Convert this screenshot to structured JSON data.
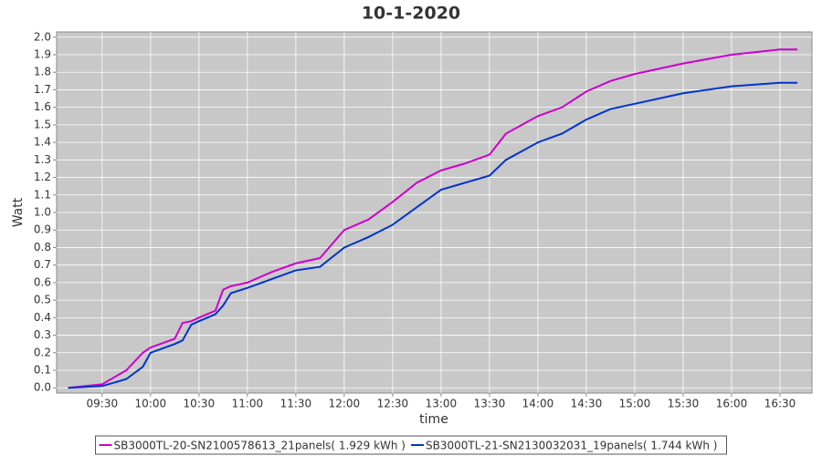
{
  "chart_data": {
    "type": "line",
    "title": "10-1-2020",
    "x_label": "time",
    "y_label": "Watt",
    "x": [
      9.15,
      9.5,
      9.75,
      9.92,
      10.0,
      10.25,
      10.33,
      10.42,
      10.5,
      10.67,
      10.75,
      10.83,
      11.0,
      11.25,
      11.5,
      11.75,
      12.0,
      12.25,
      12.5,
      12.75,
      13.0,
      13.25,
      13.5,
      13.67,
      14.0,
      14.25,
      14.5,
      14.75,
      15.0,
      15.5,
      16.0,
      16.5,
      16.68
    ],
    "series": [
      {
        "name": "SB3000TL-20-SN2100578613_21panels( 1.929 kWh )",
        "color": "#cc00cc",
        "values": [
          0,
          0.02,
          0.1,
          0.2,
          0.23,
          0.28,
          0.37,
          0.38,
          0.4,
          0.44,
          0.56,
          0.58,
          0.6,
          0.66,
          0.71,
          0.74,
          0.9,
          0.96,
          1.06,
          1.17,
          1.24,
          1.28,
          1.33,
          1.45,
          1.55,
          1.6,
          1.69,
          1.75,
          1.79,
          1.85,
          1.9,
          1.93,
          1.93
        ]
      },
      {
        "name": "SB3000TL-21-SN2130032031_19panels( 1.744 kWh )",
        "color": "#0033cc",
        "values": [
          0,
          0.01,
          0.05,
          0.12,
          0.2,
          0.25,
          0.27,
          0.36,
          0.38,
          0.42,
          0.47,
          0.54,
          0.57,
          0.62,
          0.67,
          0.69,
          0.8,
          0.86,
          0.93,
          1.03,
          1.13,
          1.17,
          1.21,
          1.3,
          1.4,
          1.45,
          1.53,
          1.59,
          1.62,
          1.68,
          1.72,
          1.74,
          1.74
        ]
      }
    ],
    "xlim": [
      9.03,
      16.83
    ],
    "xticks": [
      {
        "value": 9.5,
        "label": "09:30"
      },
      {
        "value": 10,
        "label": "10:00"
      },
      {
        "value": 10.5,
        "label": "10:30"
      },
      {
        "value": 11,
        "label": "11:00"
      },
      {
        "value": 11.5,
        "label": "11:30"
      },
      {
        "value": 12,
        "label": "12:00"
      },
      {
        "value": 12.5,
        "label": "12:30"
      },
      {
        "value": 13,
        "label": "13:00"
      },
      {
        "value": 13.5,
        "label": "13:30"
      },
      {
        "value": 14,
        "label": "14:00"
      },
      {
        "value": 14.5,
        "label": "14:30"
      },
      {
        "value": 15,
        "label": "15:00"
      },
      {
        "value": 15.5,
        "label": "15:30"
      },
      {
        "value": 16,
        "label": "16:00"
      },
      {
        "value": 16.5,
        "label": "16:30"
      }
    ],
    "ylim": [
      -0.03,
      2.03
    ],
    "yticks": [
      {
        "value": 0,
        "label": "0.0"
      },
      0.1,
      0.2,
      0.3,
      0.4,
      0.5,
      0.6,
      0.7,
      0.8,
      0.9,
      {
        "value": 1,
        "label": "1.0"
      },
      1.1,
      1.2,
      1.3,
      1.4,
      1.5,
      1.6,
      1.7,
      1.8,
      1.9,
      {
        "value": 2,
        "label": "2.0"
      }
    ],
    "grid": true,
    "legend": "bottom"
  }
}
